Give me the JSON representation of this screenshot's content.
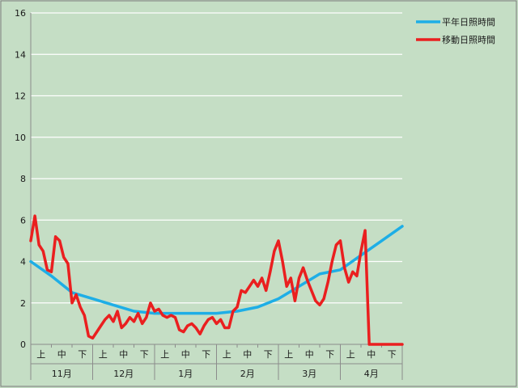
{
  "chart_data": {
    "type": "line",
    "title": "",
    "xlabel": "",
    "ylabel": "",
    "ylim": [
      0,
      16
    ],
    "yticks": [
      0,
      2,
      4,
      6,
      8,
      10,
      12,
      14,
      16
    ],
    "grid": true,
    "legend_position": "top-right",
    "background_color": "#c5dec5",
    "x_sub_labels": [
      "上",
      "中",
      "下",
      "上",
      "中",
      "下",
      "上",
      "中",
      "下",
      "上",
      "中",
      "下",
      "上",
      "中",
      "下",
      "上",
      "中",
      "下"
    ],
    "x_month_labels": [
      "11月",
      "12月",
      "1月",
      "2月",
      "3月",
      "4月"
    ],
    "x_range": [
      0,
      180
    ],
    "series": [
      {
        "name": "平年日照時間",
        "color": "#1eaee6",
        "x": [
          0,
          10,
          20,
          30,
          40,
          50,
          60,
          70,
          80,
          90,
          100,
          110,
          120,
          130,
          140,
          150,
          160,
          170,
          180
        ],
        "values": [
          4.0,
          3.3,
          2.5,
          2.2,
          1.9,
          1.6,
          1.5,
          1.5,
          1.5,
          1.5,
          1.6,
          1.8,
          2.2,
          2.8,
          3.4,
          3.6,
          4.3,
          5.0,
          5.7
        ]
      },
      {
        "name": "移動日照時間",
        "color": "#ea1f1f",
        "x": [
          0,
          2,
          4,
          6,
          8,
          10,
          12,
          14,
          16,
          18,
          20,
          22,
          24,
          26,
          28,
          30,
          32,
          34,
          36,
          38,
          40,
          42,
          44,
          46,
          48,
          50,
          52,
          54,
          56,
          58,
          60,
          62,
          64,
          66,
          68,
          70,
          72,
          74,
          76,
          78,
          80,
          82,
          84,
          86,
          88,
          90,
          92,
          94,
          96,
          98,
          100,
          102,
          104,
          106,
          108,
          110,
          112,
          114,
          116,
          118,
          120,
          122,
          124,
          126,
          128,
          130,
          132,
          134,
          136,
          138,
          140,
          142,
          144,
          146,
          148,
          150,
          152,
          154,
          156,
          158,
          160,
          162,
          164,
          166,
          168,
          170,
          172,
          174,
          176,
          178,
          180
        ],
        "values": [
          5.0,
          6.2,
          4.8,
          4.5,
          3.6,
          3.5,
          5.2,
          5.0,
          4.2,
          3.9,
          2.0,
          2.4,
          1.8,
          1.4,
          0.4,
          0.3,
          0.6,
          0.9,
          1.2,
          1.4,
          1.1,
          1.6,
          0.8,
          1.0,
          1.3,
          1.1,
          1.5,
          1.0,
          1.3,
          2.0,
          1.6,
          1.7,
          1.4,
          1.3,
          1.4,
          1.3,
          0.7,
          0.6,
          0.9,
          1.0,
          0.8,
          0.5,
          0.9,
          1.2,
          1.3,
          1.0,
          1.2,
          0.8,
          0.8,
          1.6,
          1.8,
          2.6,
          2.5,
          2.8,
          3.1,
          2.8,
          3.2,
          2.6,
          3.5,
          4.5,
          5.0,
          4.0,
          2.8,
          3.2,
          2.1,
          3.2,
          3.7,
          3.1,
          2.6,
          2.1,
          1.9,
          2.2,
          3.0,
          4.0,
          4.8,
          5.0,
          3.7,
          3.0,
          3.5,
          3.3,
          4.5,
          5.5,
          0,
          0,
          0,
          0,
          0,
          0,
          0,
          0,
          0
        ]
      }
    ]
  }
}
